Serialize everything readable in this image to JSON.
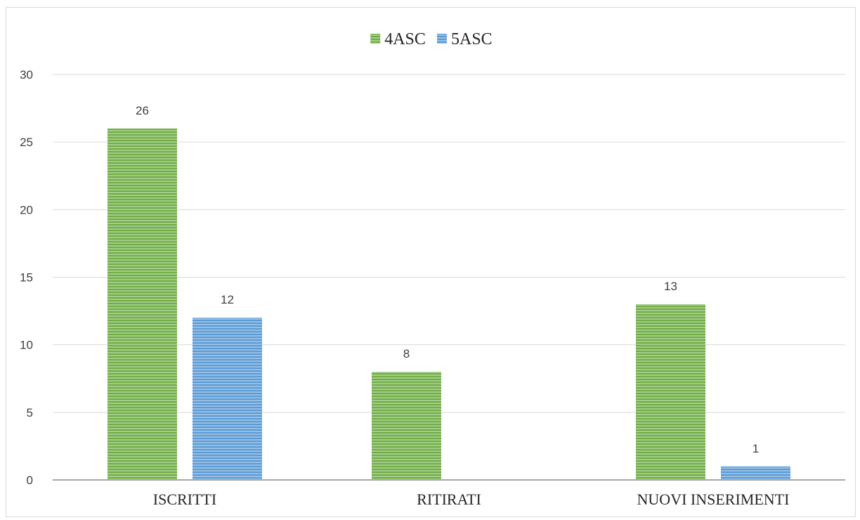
{
  "chart_data": {
    "type": "bar",
    "categories": [
      "ISCRITTI",
      "RITIRATI",
      "NUOVI INSERIMENTI"
    ],
    "series": [
      {
        "name": "4ASC",
        "values": [
          26,
          8,
          13
        ],
        "color": "#70ad47"
      },
      {
        "name": "5ASC",
        "values": [
          12,
          null,
          1
        ],
        "color": "#5b9bd5"
      }
    ],
    "y_ticks": [
      0,
      5,
      10,
      15,
      20,
      25,
      30
    ],
    "ylim": [
      0,
      30
    ],
    "grid": true,
    "legend_position": "top-center",
    "data_labels": true
  }
}
